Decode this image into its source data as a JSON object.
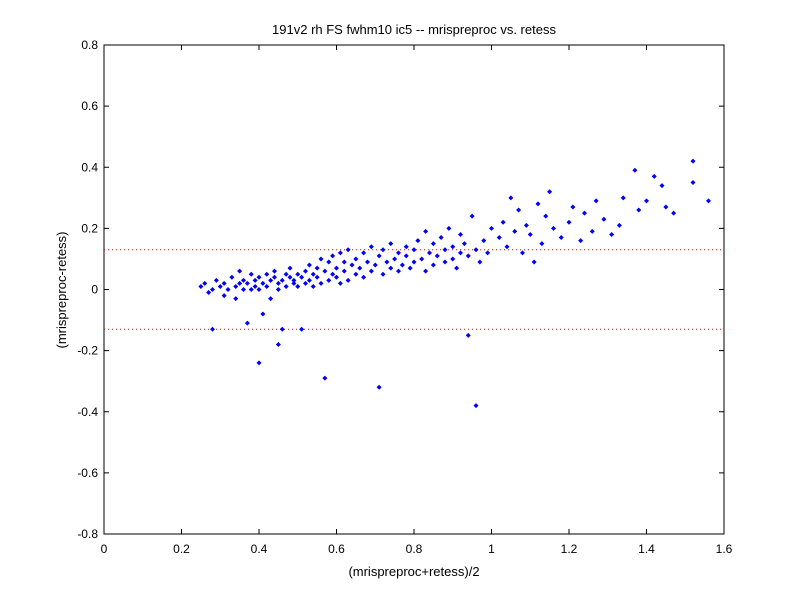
{
  "chart_data": {
    "type": "scatter",
    "title": "191v2 rh FS fwhm10 ic5 -- mrispreproc vs. retess",
    "xlabel": "(mrispreproc+retess)/2",
    "ylabel": "(mrispreproc-retess)",
    "xlim": [
      0,
      1.6
    ],
    "ylim": [
      -0.8,
      0.8
    ],
    "xticks": [
      "0",
      "0.2",
      "0.4",
      "0.6",
      "0.8",
      "1",
      "1.2",
      "1.4",
      "1.6"
    ],
    "yticks": [
      "-0.8",
      "-0.6",
      "-0.4",
      "-0.2",
      "0",
      "0.2",
      "0.4",
      "0.6",
      "0.8"
    ],
    "grid": false,
    "point_color": "#0000ff",
    "reference_lines": [
      {
        "y": 0.13,
        "color": "#ff0000",
        "style": "dotted"
      },
      {
        "y": -0.13,
        "color": "#ff0000",
        "style": "dotted"
      }
    ],
    "series": [
      {
        "color": "#0000ff",
        "points": [
          [
            0.25,
            0.01
          ],
          [
            0.26,
            0.02
          ],
          [
            0.27,
            -0.01
          ],
          [
            0.28,
            0.0
          ],
          [
            0.28,
            -0.13
          ],
          [
            0.29,
            0.03
          ],
          [
            0.3,
            0.01
          ],
          [
            0.31,
            -0.02
          ],
          [
            0.31,
            0.02
          ],
          [
            0.32,
            0.0
          ],
          [
            0.33,
            0.04
          ],
          [
            0.34,
            0.01
          ],
          [
            0.34,
            -0.03
          ],
          [
            0.35,
            0.02
          ],
          [
            0.35,
            0.06
          ],
          [
            0.36,
            0.0
          ],
          [
            0.36,
            0.03
          ],
          [
            0.37,
            -0.11
          ],
          [
            0.37,
            0.02
          ],
          [
            0.38,
            0.05
          ],
          [
            0.38,
            0.0
          ],
          [
            0.39,
            0.01
          ],
          [
            0.39,
            0.03
          ],
          [
            0.4,
            -0.24
          ],
          [
            0.4,
            0.04
          ],
          [
            0.4,
            0.0
          ],
          [
            0.41,
            0.02
          ],
          [
            0.41,
            -0.08
          ],
          [
            0.42,
            0.05
          ],
          [
            0.42,
            0.01
          ],
          [
            0.43,
            0.03
          ],
          [
            0.43,
            -0.03
          ],
          [
            0.44,
            0.04
          ],
          [
            0.44,
            0.06
          ],
          [
            0.45,
            0.02
          ],
          [
            0.45,
            -0.18
          ],
          [
            0.45,
            0.0
          ],
          [
            0.46,
            0.03
          ],
          [
            0.46,
            -0.13
          ],
          [
            0.47,
            0.05
          ],
          [
            0.47,
            0.01
          ],
          [
            0.48,
            0.04
          ],
          [
            0.48,
            0.07
          ],
          [
            0.49,
            0.02
          ],
          [
            0.49,
            0.03
          ],
          [
            0.5,
            0.05
          ],
          [
            0.5,
            0.01
          ],
          [
            0.51,
            0.04
          ],
          [
            0.51,
            -0.13
          ],
          [
            0.52,
            0.06
          ],
          [
            0.52,
            0.02
          ],
          [
            0.53,
            0.08
          ],
          [
            0.53,
            0.03
          ],
          [
            0.54,
            0.05
          ],
          [
            0.54,
            0.01
          ],
          [
            0.55,
            0.07
          ],
          [
            0.55,
            0.04
          ],
          [
            0.56,
            0.1
          ],
          [
            0.56,
            0.02
          ],
          [
            0.57,
            -0.29
          ],
          [
            0.57,
            0.06
          ],
          [
            0.58,
            0.03
          ],
          [
            0.58,
            0.09
          ],
          [
            0.59,
            0.05
          ],
          [
            0.59,
            0.11
          ],
          [
            0.6,
            0.04
          ],
          [
            0.6,
            0.07
          ],
          [
            0.61,
            0.02
          ],
          [
            0.61,
            0.12
          ],
          [
            0.62,
            0.06
          ],
          [
            0.62,
            0.09
          ],
          [
            0.63,
            0.03
          ],
          [
            0.63,
            0.13
          ],
          [
            0.64,
            0.08
          ],
          [
            0.65,
            0.05
          ],
          [
            0.65,
            0.1
          ],
          [
            0.66,
            0.07
          ],
          [
            0.67,
            0.12
          ],
          [
            0.67,
            0.04
          ],
          [
            0.68,
            0.09
          ],
          [
            0.69,
            0.06
          ],
          [
            0.69,
            0.14
          ],
          [
            0.7,
            0.08
          ],
          [
            0.71,
            0.11
          ],
          [
            0.71,
            -0.32
          ],
          [
            0.72,
            0.05
          ],
          [
            0.72,
            0.13
          ],
          [
            0.73,
            0.09
          ],
          [
            0.74,
            0.07
          ],
          [
            0.74,
            0.15
          ],
          [
            0.75,
            0.1
          ],
          [
            0.76,
            0.06
          ],
          [
            0.76,
            0.12
          ],
          [
            0.77,
            0.08
          ],
          [
            0.78,
            0.14
          ],
          [
            0.78,
            0.11
          ],
          [
            0.79,
            0.07
          ],
          [
            0.8,
            0.13
          ],
          [
            0.8,
            0.09
          ],
          [
            0.81,
            0.16
          ],
          [
            0.82,
            0.1
          ],
          [
            0.83,
            0.06
          ],
          [
            0.83,
            0.19
          ],
          [
            0.84,
            0.12
          ],
          [
            0.85,
            0.08
          ],
          [
            0.85,
            0.15
          ],
          [
            0.86,
            0.11
          ],
          [
            0.87,
            0.17
          ],
          [
            0.88,
            0.09
          ],
          [
            0.88,
            0.13
          ],
          [
            0.89,
            0.2
          ],
          [
            0.9,
            0.1
          ],
          [
            0.9,
            0.14
          ],
          [
            0.91,
            0.07
          ],
          [
            0.92,
            0.18
          ],
          [
            0.92,
            0.12
          ],
          [
            0.93,
            0.15
          ],
          [
            0.94,
            -0.15
          ],
          [
            0.94,
            0.11
          ],
          [
            0.95,
            0.24
          ],
          [
            0.96,
            0.13
          ],
          [
            0.96,
            -0.38
          ],
          [
            0.97,
            0.09
          ],
          [
            0.98,
            0.16
          ],
          [
            0.99,
            0.12
          ],
          [
            1.0,
            0.2
          ],
          [
            1.02,
            0.17
          ],
          [
            1.03,
            0.22
          ],
          [
            1.04,
            0.14
          ],
          [
            1.05,
            0.3
          ],
          [
            1.06,
            0.19
          ],
          [
            1.07,
            0.26
          ],
          [
            1.08,
            0.12
          ],
          [
            1.09,
            0.21
          ],
          [
            1.1,
            0.18
          ],
          [
            1.11,
            0.09
          ],
          [
            1.12,
            0.28
          ],
          [
            1.13,
            0.15
          ],
          [
            1.14,
            0.24
          ],
          [
            1.15,
            0.32
          ],
          [
            1.16,
            0.2
          ],
          [
            1.18,
            0.17
          ],
          [
            1.2,
            0.22
          ],
          [
            1.21,
            0.27
          ],
          [
            1.23,
            0.16
          ],
          [
            1.24,
            0.25
          ],
          [
            1.26,
            0.19
          ],
          [
            1.27,
            0.29
          ],
          [
            1.29,
            0.23
          ],
          [
            1.31,
            0.18
          ],
          [
            1.33,
            0.21
          ],
          [
            1.34,
            0.3
          ],
          [
            1.37,
            0.39
          ],
          [
            1.38,
            0.26
          ],
          [
            1.4,
            0.29
          ],
          [
            1.42,
            0.37
          ],
          [
            1.44,
            0.34
          ],
          [
            1.45,
            0.27
          ],
          [
            1.47,
            0.25
          ],
          [
            1.52,
            0.42
          ],
          [
            1.52,
            0.35
          ],
          [
            1.56,
            0.29
          ]
        ]
      }
    ]
  }
}
